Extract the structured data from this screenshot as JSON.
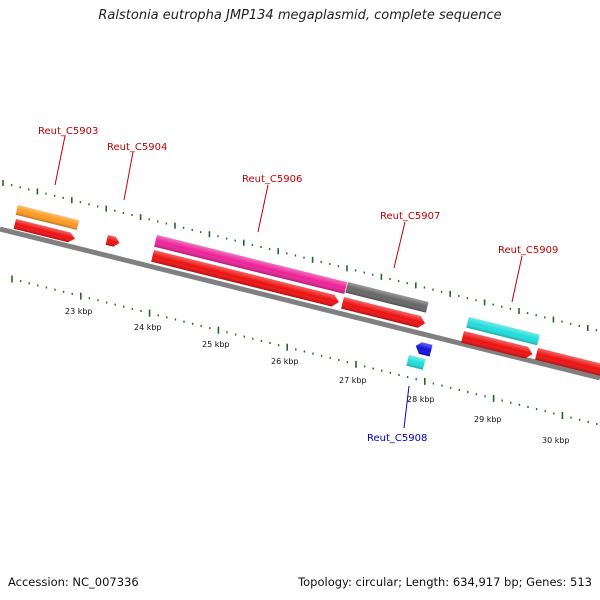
{
  "header": {
    "title": "Ralstonia eutropha JMP134 megaplasmid, complete sequence"
  },
  "footer": {
    "accession": "Accession: NC_007336",
    "summary": "Topology: circular; Length: 634,917 bp; Genes: 513"
  },
  "colors": {
    "backbone": "#808080",
    "tick": "#1e6b1e",
    "label_red": "#c00000",
    "label_blue": "#0000c0",
    "cds_red": "#ee1111",
    "orange": "#ff9922",
    "magenta": "#ee2299",
    "gray": "#666666",
    "cyan": "#22dddd",
    "blue": "#1111dd"
  },
  "scale_labels": [
    "23 kbp",
    "24 kbp",
    "25 kbp",
    "26 kbp",
    "27 kbp",
    "28 kbp",
    "29 kbp",
    "30 kbp"
  ],
  "gene_labels": [
    {
      "text": "Reut_C5903",
      "color": "red"
    },
    {
      "text": "Reut_C5904",
      "color": "red"
    },
    {
      "text": "Reut_C5906",
      "color": "red"
    },
    {
      "text": "Reut_C5907",
      "color": "red"
    },
    {
      "text": "Reut_C5909",
      "color": "red"
    },
    {
      "text": "Reut_C5908",
      "color": "blue"
    }
  ]
}
